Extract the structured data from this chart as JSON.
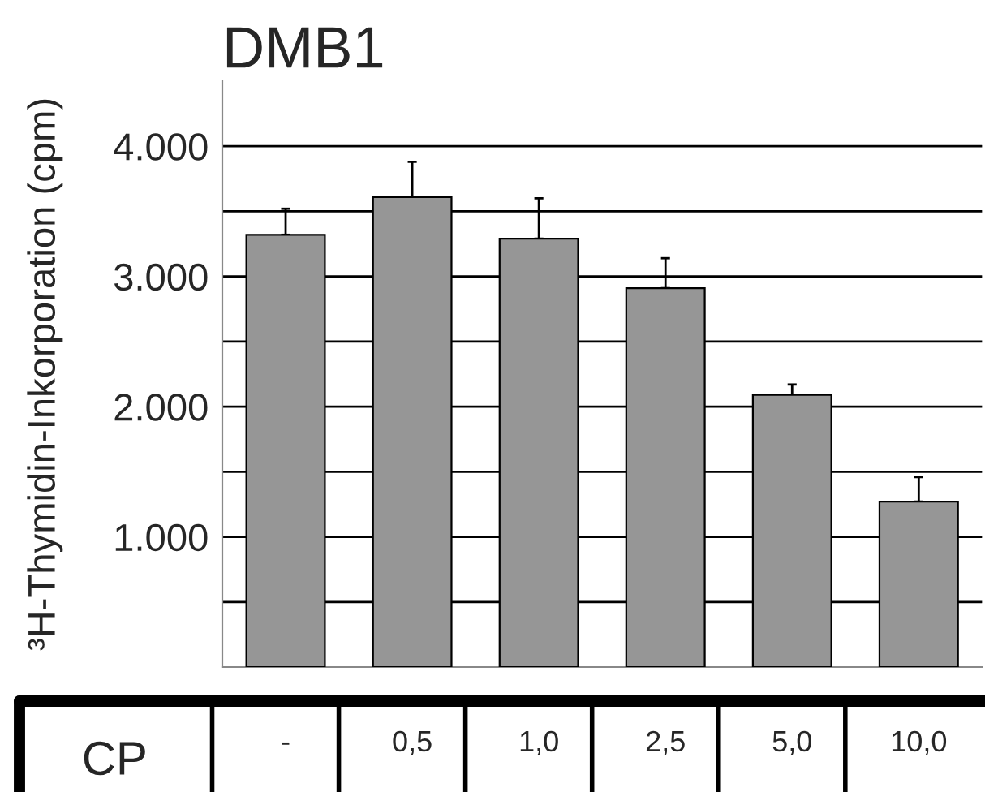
{
  "chart_data": {
    "type": "bar",
    "title": "DMB1",
    "ylabel": "³H-Thymidin-Inkorporation (cpm)",
    "xlabel": "CP",
    "categories": [
      "-",
      "0,5",
      "1,0",
      "2,5",
      "5,0",
      "10,0"
    ],
    "values": [
      3320,
      3610,
      3290,
      2910,
      2090,
      1270
    ],
    "errors": [
      [
        3320,
        3520
      ],
      [
        3610,
        3880
      ],
      [
        3290,
        3600
      ],
      [
        2910,
        3140
      ],
      [
        2090,
        2170
      ],
      [
        1270,
        1460
      ]
    ],
    "color": "#969696",
    "ylim": [
      0,
      4500
    ],
    "yticks": [
      {
        "value": 500,
        "label": null
      },
      {
        "value": 1000,
        "label": "1.000"
      },
      {
        "value": 1500,
        "label": null
      },
      {
        "value": 2000,
        "label": "2.000"
      },
      {
        "value": 2500,
        "label": null
      },
      {
        "value": 3000,
        "label": "3.000"
      },
      {
        "value": 3500,
        "label": null
      },
      {
        "value": 4000,
        "label": "4.000"
      }
    ],
    "grid": "y"
  }
}
